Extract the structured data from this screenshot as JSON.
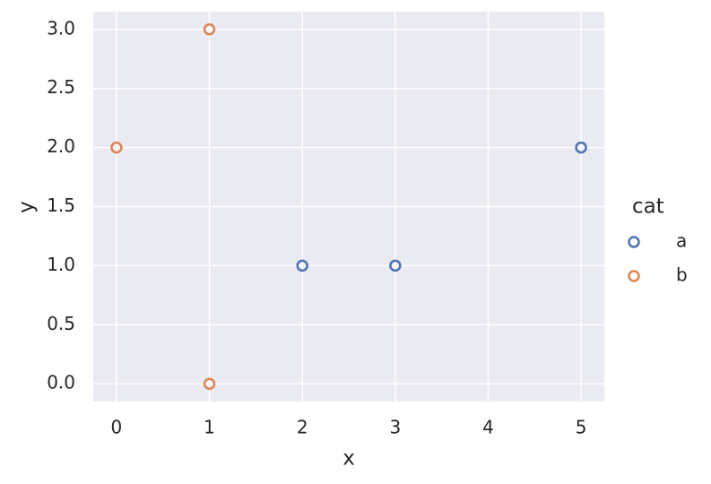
{
  "chart_data": {
    "type": "scatter",
    "x_label": "x",
    "y_label": "y",
    "legend_title": "cat",
    "xlim": [
      -0.25,
      5.25
    ],
    "ylim": [
      -0.15,
      3.15
    ],
    "xticks": [
      0,
      1,
      2,
      3,
      4,
      5
    ],
    "yticks": [
      {
        "value": 0,
        "label": "0.0"
      },
      {
        "value": 0.5,
        "label": "0.5"
      },
      {
        "value": 1,
        "label": "1.0"
      },
      {
        "value": 1.5,
        "label": "1.5"
      },
      {
        "value": 2,
        "label": "2.0"
      },
      {
        "value": 2.5,
        "label": "2.5"
      },
      {
        "value": 3,
        "label": "3.0"
      }
    ],
    "grid": true,
    "legend": "right",
    "series": [
      {
        "name": "a",
        "color": "#4c72b0",
        "x": [
          2,
          3,
          5
        ],
        "values": [
          1,
          1,
          2
        ]
      },
      {
        "name": "b",
        "color": "#dd8452",
        "x": [
          0,
          1,
          1
        ],
        "values": [
          2,
          3,
          0
        ]
      }
    ]
  }
}
